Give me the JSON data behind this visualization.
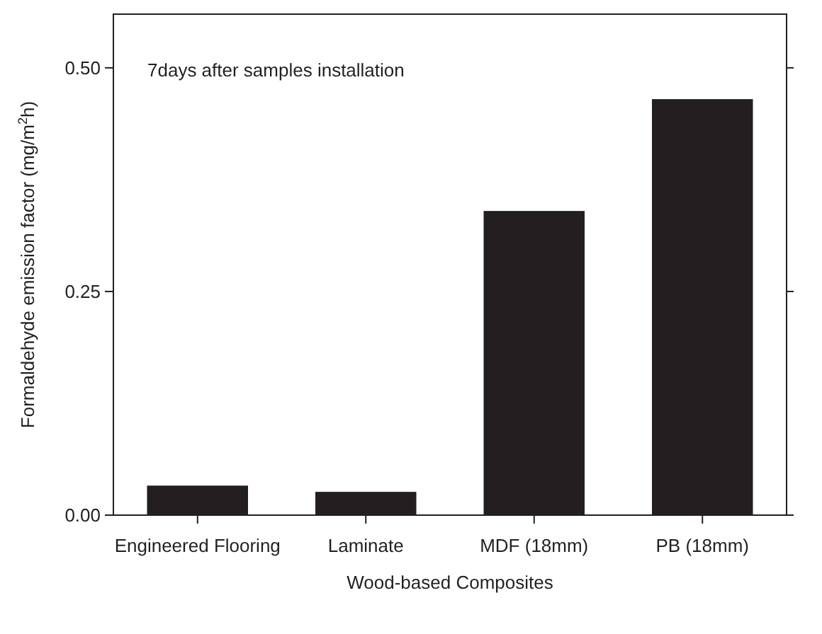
{
  "chart_data": {
    "type": "bar",
    "xlabel": "Wood-based Composites",
    "ylabel": "Formaldehyde emission factor (mg/m$^{2}$h)",
    "categories": [
      "Engineered Flooring",
      "Laminate",
      "MDF (18mm)",
      "PB (18mm)"
    ],
    "values": [
      0.033,
      0.026,
      0.34,
      0.465
    ],
    "color": "#231f20",
    "ylim": [
      0,
      0.56
    ],
    "yticks": [
      {
        "value": 0,
        "label": "0.00"
      },
      {
        "value": 0.25,
        "label": "0.25"
      },
      {
        "value": 0.5,
        "label": "0.50"
      }
    ],
    "annotations": [
      "7days after samples installation"
    ]
  }
}
